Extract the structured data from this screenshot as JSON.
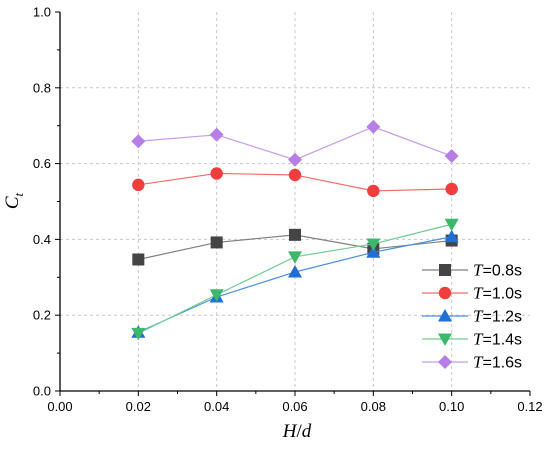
{
  "chart_data": {
    "type": "line",
    "xlabel": {
      "main": "H",
      "sep": "/",
      "sub": "d"
    },
    "ylabel": {
      "main": "C",
      "sub": "t"
    },
    "xlim": [
      0.0,
      0.12
    ],
    "ylim": [
      0.0,
      1.0
    ],
    "x_ticks": [
      "0.00",
      "0.02",
      "0.04",
      "0.06",
      "0.08",
      "0.10",
      "0.12"
    ],
    "y_ticks": [
      "0.0",
      "0.2",
      "0.4",
      "0.6",
      "0.8",
      "1.0"
    ],
    "grid": true,
    "legend_position": "lower-right",
    "x": [
      0.02,
      0.04,
      0.06,
      0.08,
      0.1
    ],
    "series": [
      {
        "name": "T=0.8s",
        "name_var": "T",
        "name_rest": "=0.8s",
        "values": [
          0.347,
          0.392,
          0.412,
          0.375,
          0.397
        ],
        "color": "#444444",
        "line_color": "#808080",
        "marker": "square"
      },
      {
        "name": "T=1.0s",
        "name_var": "T",
        "name_rest": "=1.0s",
        "values": [
          0.544,
          0.574,
          0.57,
          0.528,
          0.533
        ],
        "color": "#f03e3e",
        "line_color": "#f36a6a",
        "marker": "circle"
      },
      {
        "name": "T=1.2s",
        "name_var": "T",
        "name_rest": "=1.2s",
        "values": [
          0.155,
          0.248,
          0.314,
          0.366,
          0.407
        ],
        "color": "#1f6fd6",
        "line_color": "#4a8fe6",
        "marker": "triangle-up"
      },
      {
        "name": "T=1.4s",
        "name_var": "T",
        "name_rest": "=1.4s",
        "values": [
          0.152,
          0.254,
          0.354,
          0.388,
          0.44
        ],
        "color": "#3cb86a",
        "line_color": "#6fce90",
        "marker": "triangle-down"
      },
      {
        "name": "T=1.6s",
        "name_var": "T",
        "name_rest": "=1.6s",
        "values": [
          0.659,
          0.676,
          0.61,
          0.697,
          0.62
        ],
        "color": "#b77ee6",
        "line_color": "#c89ceb",
        "marker": "diamond"
      }
    ]
  }
}
